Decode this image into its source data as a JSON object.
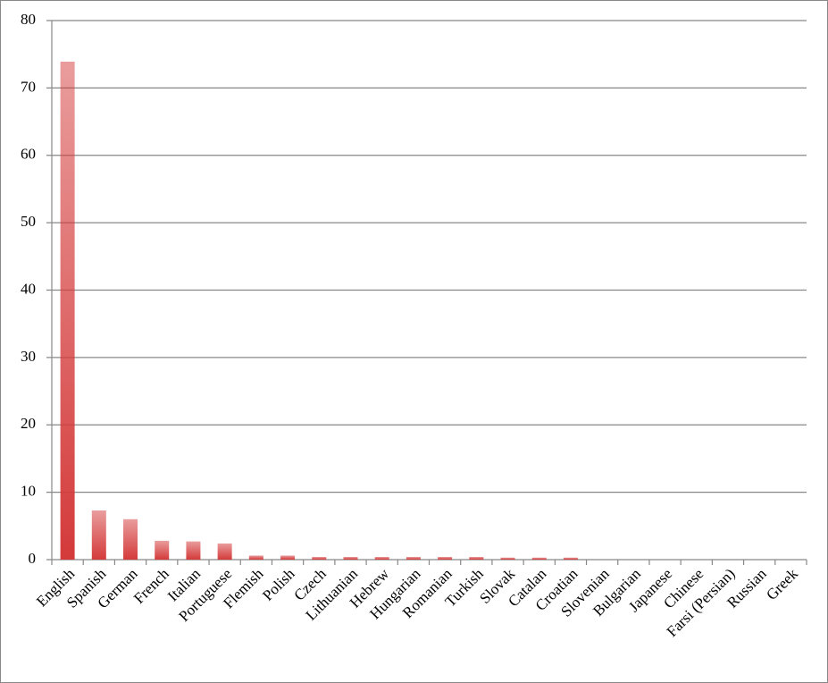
{
  "chart_data": {
    "type": "bar",
    "categories": [
      "English",
      "Spanish",
      "German",
      "French",
      "Italian",
      "Portuguese",
      "Flemish",
      "Polish",
      "Czech",
      "Lithuanian",
      "Hebrew",
      "Hungarian",
      "Romanian",
      "Turkish",
      "Slovak",
      "Catalan",
      "Croatian",
      "Slovenian",
      "Bulgarian",
      "Japanese",
      "Chinese",
      "Farsi (Persian)",
      "Russian",
      "Greek"
    ],
    "values": [
      73.9,
      7.3,
      6.0,
      2.8,
      2.7,
      2.4,
      0.6,
      0.6,
      0.4,
      0.4,
      0.4,
      0.4,
      0.4,
      0.4,
      0.3,
      0.3,
      0.3,
      0,
      0,
      0,
      0,
      0,
      0,
      0
    ],
    "color": "#d43a3a",
    "ylim": [
      0,
      80
    ],
    "yticks": [
      0,
      10,
      20,
      30,
      40,
      50,
      60,
      70,
      80
    ],
    "grid": true
  }
}
